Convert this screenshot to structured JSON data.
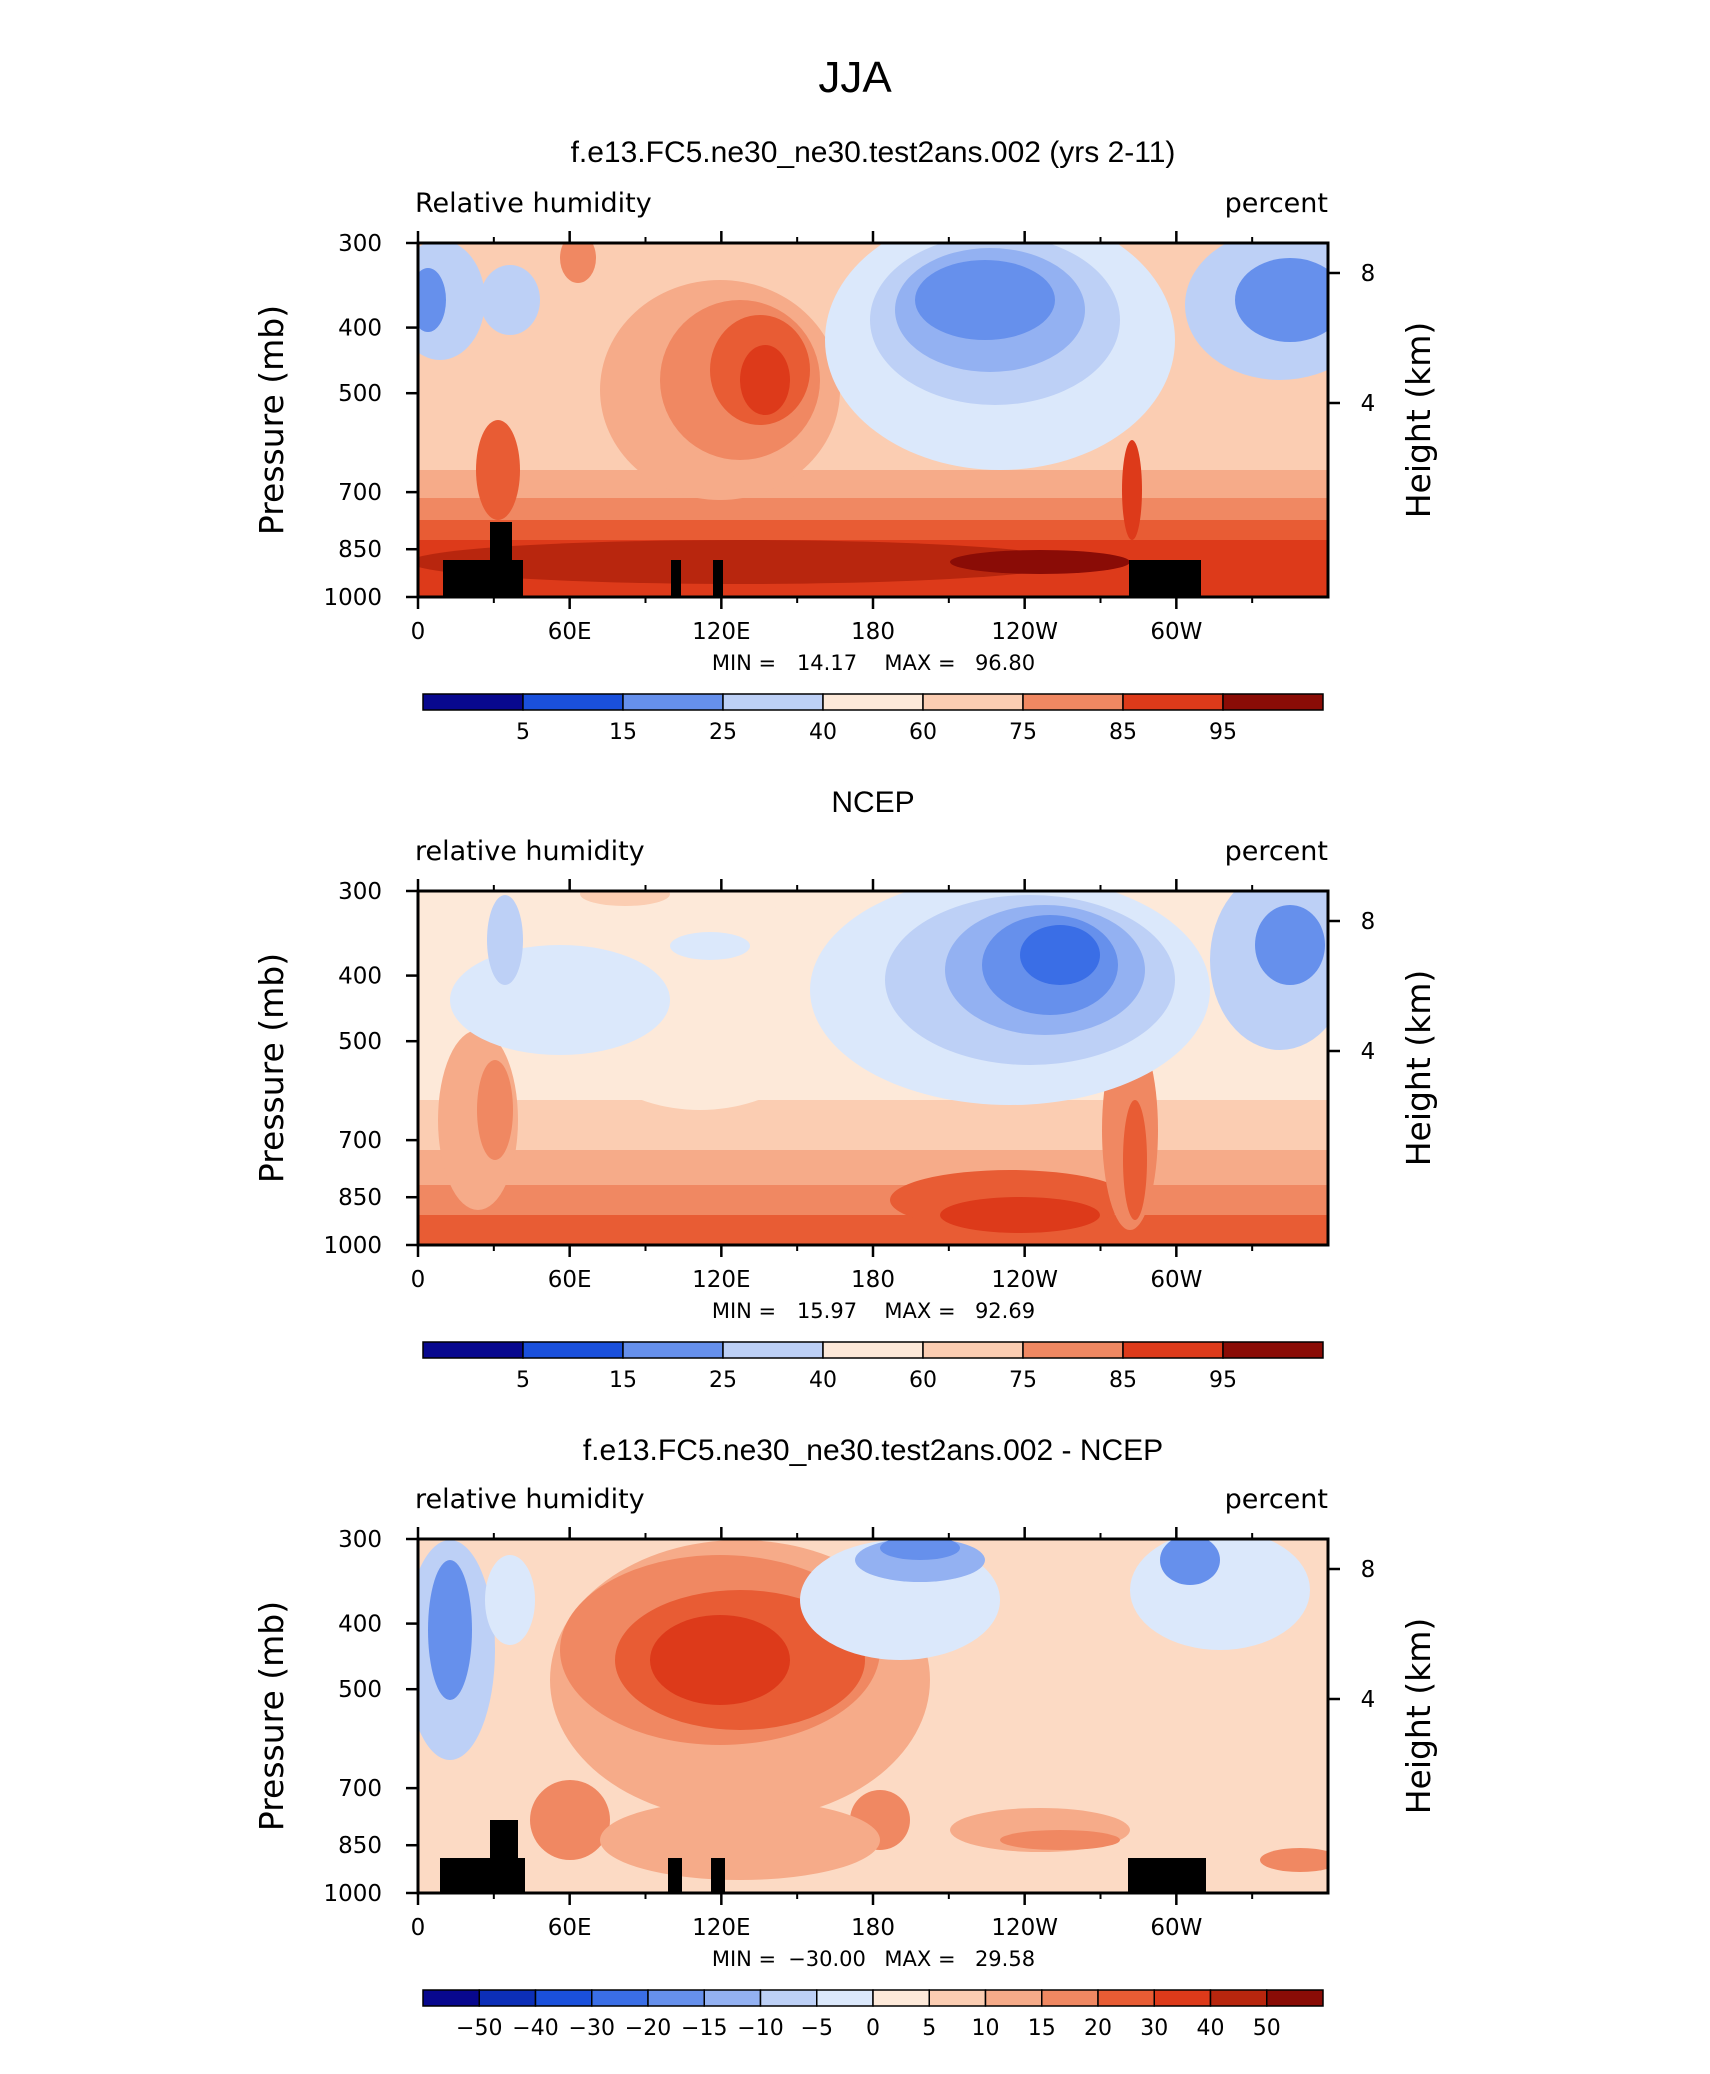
{
  "page_title": "JJA",
  "chart_data": [
    {
      "type": "heatmap",
      "title": "f.e13.FC5.ne30_ne30.test2ans.002 (yrs 2-11)",
      "left_label": "Relative  humidity",
      "right_label": "percent",
      "ylabel": "Pressure  (mb)",
      "ylabel_right": "Height  (km)",
      "x_ticks": [
        "0",
        "60E",
        "120E",
        "180",
        "120W",
        "60W"
      ],
      "y_ticks": [
        "300",
        "400",
        "500",
        "700",
        "850",
        "1000"
      ],
      "y_ticks_right": [
        "8",
        "4"
      ],
      "min_label": "MIN =",
      "min_value": "14.17",
      "max_label": "MAX =",
      "max_value": "96.80",
      "colorbar_labels": [
        "5",
        "15",
        "25",
        "40",
        "60",
        "75",
        "85",
        "95"
      ],
      "has_topography": true
    },
    {
      "type": "heatmap",
      "title": "NCEP",
      "left_label": "relative  humidity",
      "right_label": "percent",
      "ylabel": "Pressure  (mb)",
      "ylabel_right": "Height  (km)",
      "x_ticks": [
        "0",
        "60E",
        "120E",
        "180",
        "120W",
        "60W"
      ],
      "y_ticks": [
        "300",
        "400",
        "500",
        "700",
        "850",
        "1000"
      ],
      "y_ticks_right": [
        "8",
        "4"
      ],
      "min_label": "MIN =",
      "min_value": "15.97",
      "max_label": "MAX =",
      "max_value": "92.69",
      "colorbar_labels": [
        "5",
        "15",
        "25",
        "40",
        "60",
        "75",
        "85",
        "95"
      ],
      "has_topography": false
    },
    {
      "type": "heatmap",
      "title": "f.e13.FC5.ne30_ne30.test2ans.002 - NCEP",
      "left_label": "relative  humidity",
      "right_label": "percent",
      "ylabel": "Pressure  (mb)",
      "ylabel_right": "Height  (km)",
      "x_ticks": [
        "0",
        "60E",
        "120E",
        "180",
        "120W",
        "60W"
      ],
      "y_ticks": [
        "300",
        "400",
        "500",
        "700",
        "850",
        "1000"
      ],
      "y_ticks_right": [
        "8",
        "4"
      ],
      "min_label": "MIN =",
      "min_value": "−30.00",
      "max_label": "MAX =",
      "max_value": "29.58",
      "colorbar_labels": [
        "−50",
        "−40",
        "−30",
        "−20",
        "−15",
        "−10",
        "−5",
        "0",
        "5",
        "10",
        "15",
        "20",
        "30",
        "40",
        "50"
      ],
      "has_topography": true
    }
  ],
  "colors": {
    "scale": [
      "#08088e",
      "#0c2fb8",
      "#1a50dc",
      "#3a6ee6",
      "#6690ec",
      "#93b1f2",
      "#bdd0f6",
      "#dbe8fb",
      "#fde9d9",
      "#fbcdb2",
      "#f6ab89",
      "#f08862",
      "#e85c34",
      "#dd3a1a",
      "#b8260e",
      "#8a0c06"
    ],
    "land": "#000000"
  }
}
